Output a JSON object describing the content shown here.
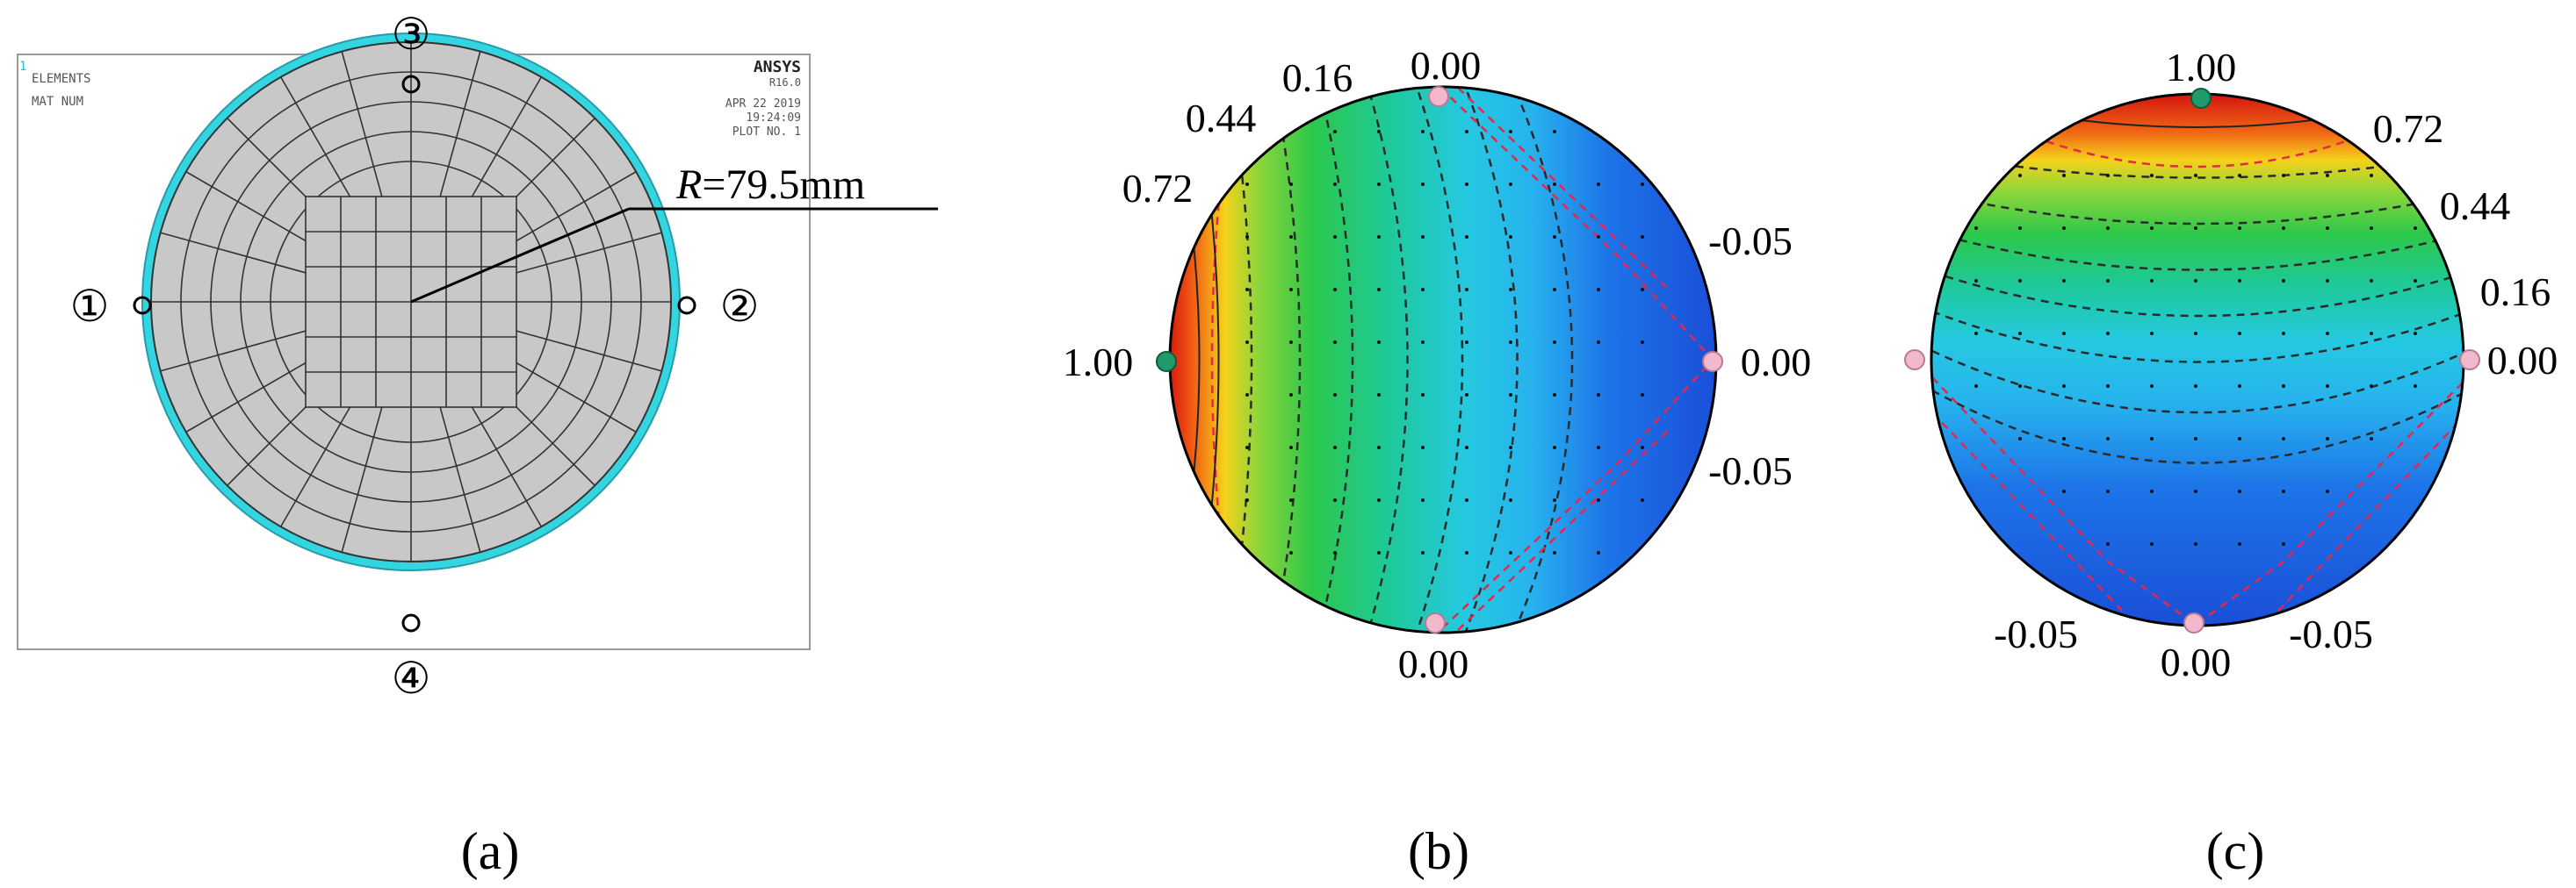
{
  "panel_a": {
    "software": "ANSYS",
    "version": "R16.0",
    "plot_type": "ELEMENTS",
    "mat_num": "MAT NUM",
    "date": "APR 22 2019",
    "time": "19:24:09",
    "plot_no": "PLOT NO.   1",
    "corner_index": "1",
    "radius_label_r": "R",
    "radius_label_value": "=79.5mm",
    "markers": [
      "①",
      "②",
      "③",
      "④"
    ],
    "caption": "(a)"
  },
  "panel_b": {
    "labels": {
      "top_left_1": "0.16",
      "top": "0.00",
      "top_left_2": "0.44",
      "top_left_3": "0.72",
      "left": "1.00",
      "right_top": "-0.05",
      "right": "0.00",
      "right_bottom": "-0.05",
      "bottom": "0.00"
    },
    "caption": "(b)"
  },
  "panel_c": {
    "labels": {
      "top": "1.00",
      "right_1": "0.72",
      "right_2": "0.44",
      "right_3": "0.16",
      "right": "0.00",
      "bottom_left": "-0.05",
      "bottom": "0.00",
      "bottom_right": "-0.05"
    },
    "caption": "(c)"
  },
  "colors": {
    "mesh_fill": "#c8c8c8",
    "rim": "#33d6e0",
    "marker_green": "#1f9a6a",
    "marker_pink": "#f2b8cc",
    "red_dash": "#e8264a"
  }
}
